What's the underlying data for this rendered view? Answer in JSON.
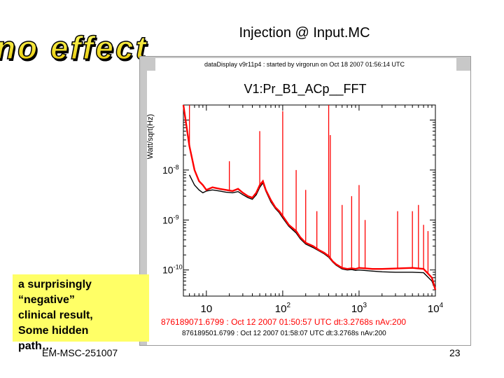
{
  "slide": {
    "title": "Injection @ Input.MC",
    "wordart_text": "no effect",
    "callout_lines": [
      "a surprisingly",
      "“negative”",
      "clinical result,",
      "Some hidden",
      "path…"
    ],
    "footer_left": "EM-MSC-251007",
    "page_number": "23"
  },
  "colors": {
    "accent_red": "#ff0000",
    "callout_yellow": "#ffff66",
    "trace_black": "#000000"
  },
  "chart_data": {
    "type": "line",
    "header": "dataDisplay v9r11p4 : started by virgorun on Oct 18 2007 01:56:14 UTC",
    "title": "V1:Pr_B1_ACp__FFT",
    "ylabel": "Watt/sqrt(Hz)",
    "xlabel": "",
    "x_scale": "log",
    "y_scale": "log",
    "xlim": [
      5,
      10000
    ],
    "ylim": [
      3e-11,
      2e-07
    ],
    "x_ticks": [
      {
        "value": 10,
        "label": "10"
      },
      {
        "value": 100,
        "base": "10",
        "exp": "2"
      },
      {
        "value": 1000,
        "base": "10",
        "exp": "3"
      },
      {
        "value": 10000,
        "base": "10",
        "exp": "4"
      }
    ],
    "y_ticks": [
      {
        "value": 1e-08,
        "base": "10",
        "exp": "-8"
      },
      {
        "value": 1e-09,
        "base": "10",
        "exp": "-9"
      },
      {
        "value": 1e-10,
        "base": "10",
        "exp": "-10"
      }
    ],
    "series": [
      {
        "name": "876189071.6799 : Oct 12 2007 01:50:57 UTC dt:3.2768s nAv:200",
        "color": "#ff0000",
        "points": [
          [
            5,
            2e-07
          ],
          [
            6,
            3e-08
          ],
          [
            7,
            1e-08
          ],
          [
            8,
            6e-09
          ],
          [
            9,
            5e-09
          ],
          [
            10,
            4e-09
          ],
          [
            12,
            4.5e-09
          ],
          [
            15,
            4.2e-09
          ],
          [
            18,
            4e-09
          ],
          [
            22,
            3.8e-09
          ],
          [
            26,
            4.2e-09
          ],
          [
            30,
            3.5e-09
          ],
          [
            35,
            3e-09
          ],
          [
            40,
            2.8e-09
          ],
          [
            45,
            3.5e-09
          ],
          [
            50,
            5e-09
          ],
          [
            55,
            6e-09
          ],
          [
            60,
            4e-09
          ],
          [
            70,
            2.5e-09
          ],
          [
            80,
            1.8e-09
          ],
          [
            90,
            1.5e-09
          ],
          [
            100,
            1.2e-09
          ],
          [
            120,
            8e-10
          ],
          [
            150,
            6e-10
          ],
          [
            170,
            4.5e-10
          ],
          [
            200,
            3.5e-10
          ],
          [
            250,
            3e-10
          ],
          [
            300,
            2.5e-10
          ],
          [
            350,
            2.2e-10
          ],
          [
            400,
            1.9e-10
          ],
          [
            450,
            1.5e-10
          ],
          [
            500,
            1.3e-10
          ],
          [
            600,
            1.1e-10
          ],
          [
            700,
            1.05e-10
          ],
          [
            800,
            1.08e-10
          ],
          [
            900,
            1.05e-10
          ],
          [
            1000,
            1.1e-10
          ],
          [
            1500,
            1.05e-10
          ],
          [
            2000,
            1.05e-10
          ],
          [
            3000,
            1.07e-10
          ],
          [
            5000,
            1.1e-10
          ],
          [
            7000,
            1.05e-10
          ],
          [
            9000,
            7e-11
          ],
          [
            10000,
            4e-11
          ]
        ],
        "peaks": [
          [
            6,
            2e-07
          ],
          [
            20,
            1.5e-08
          ],
          [
            50,
            6e-08
          ],
          [
            100,
            1.5e-07
          ],
          [
            150,
            1e-08
          ],
          [
            200,
            4e-09
          ],
          [
            280,
            1.5e-09
          ],
          [
            400,
            2e-07
          ],
          [
            420,
            5e-08
          ],
          [
            600,
            2e-09
          ],
          [
            800,
            3e-09
          ],
          [
            1000,
            5e-09
          ],
          [
            1200,
            1e-09
          ],
          [
            3200,
            1.5e-09
          ],
          [
            5000,
            1.5e-09
          ],
          [
            6000,
            2e-09
          ],
          [
            7000,
            8e-10
          ],
          [
            8000,
            6e-10
          ]
        ]
      },
      {
        "name": "876189501.6799 : Oct 12 2007 01:58:07 UTC dt:3.2768s nAv:200",
        "color": "#000000",
        "points": [
          [
            6,
            8e-09
          ],
          [
            7,
            5e-09
          ],
          [
            8,
            4e-09
          ],
          [
            9,
            3.5e-09
          ],
          [
            10,
            3.8e-09
          ],
          [
            12,
            4e-09
          ],
          [
            15,
            3.8e-09
          ],
          [
            18,
            3.6e-09
          ],
          [
            22,
            3.5e-09
          ],
          [
            26,
            3.7e-09
          ],
          [
            30,
            3.2e-09
          ],
          [
            35,
            2.8e-09
          ],
          [
            40,
            2.6e-09
          ],
          [
            45,
            3.2e-09
          ],
          [
            50,
            4.5e-09
          ],
          [
            55,
            5.5e-09
          ],
          [
            60,
            3.8e-09
          ],
          [
            70,
            2.3e-09
          ],
          [
            80,
            1.7e-09
          ],
          [
            90,
            1.4e-09
          ],
          [
            100,
            1.1e-09
          ],
          [
            120,
            7.5e-10
          ],
          [
            150,
            5.5e-10
          ],
          [
            170,
            4.2e-10
          ],
          [
            200,
            3.3e-10
          ],
          [
            250,
            2.8e-10
          ],
          [
            300,
            2.4e-10
          ],
          [
            350,
            2.1e-10
          ],
          [
            400,
            1.8e-10
          ],
          [
            450,
            1.45e-10
          ],
          [
            500,
            1.25e-10
          ],
          [
            600,
            1.05e-10
          ],
          [
            700,
            1e-10
          ],
          [
            800,
            1.02e-10
          ],
          [
            900,
            9.8e-11
          ],
          [
            1000,
            1e-10
          ],
          [
            1500,
            9.5e-11
          ],
          [
            2000,
            9.2e-11
          ],
          [
            3000,
            9e-11
          ],
          [
            5000,
            9e-11
          ],
          [
            7000,
            8.8e-11
          ],
          [
            9000,
            6e-11
          ],
          [
            10000,
            4e-11
          ]
        ]
      }
    ]
  }
}
